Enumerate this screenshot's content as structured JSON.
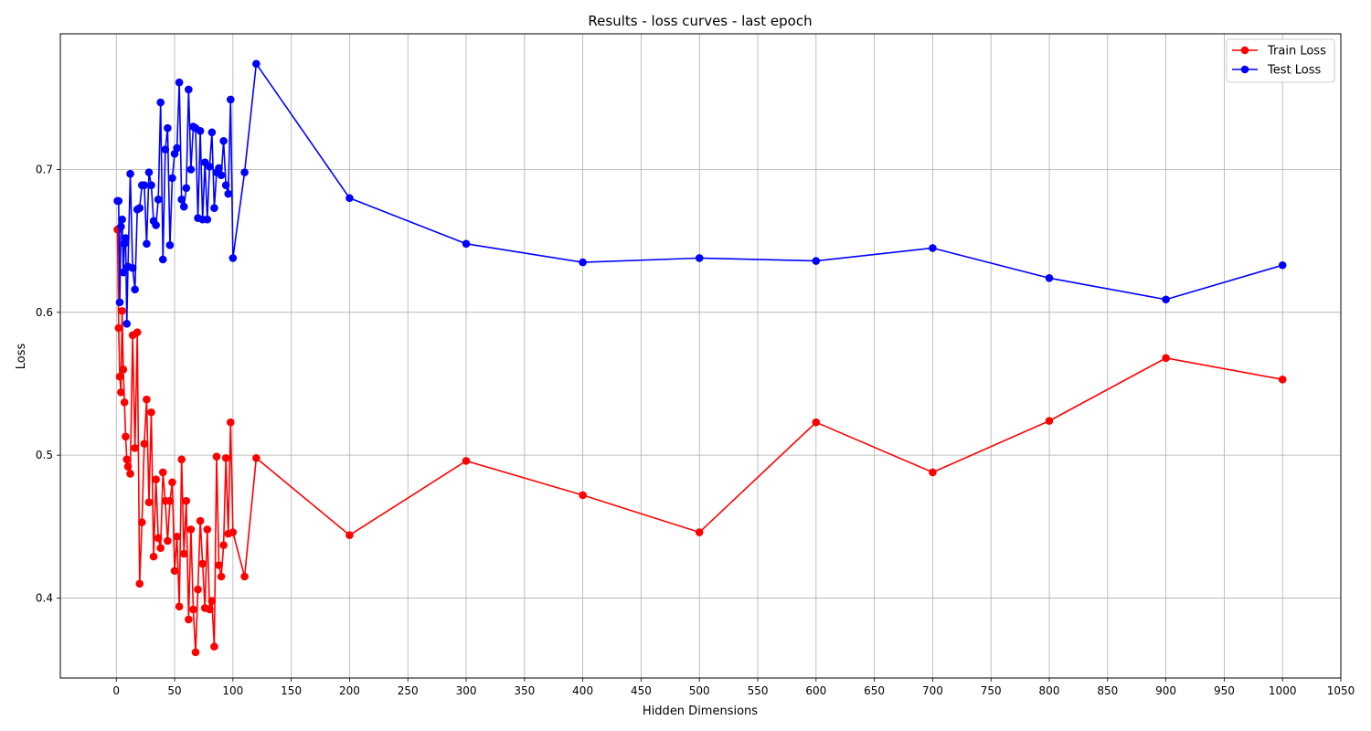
{
  "chart_data": {
    "type": "line",
    "title": "Results - loss curves - last epoch",
    "xlabel": "Hidden Dimensions",
    "ylabel": "Loss",
    "xlim": [
      -48,
      1050
    ],
    "ylim": [
      0.344,
      0.795
    ],
    "xticks": [
      0,
      50,
      100,
      150,
      200,
      250,
      300,
      350,
      400,
      450,
      500,
      550,
      600,
      650,
      700,
      750,
      800,
      850,
      900,
      950,
      1000,
      1050
    ],
    "yticks": [
      0.4,
      0.5,
      0.6,
      0.7
    ],
    "ytick_labels": [
      "0.4",
      "0.5",
      "0.6",
      "0.7"
    ],
    "grid": true,
    "legend_position": "top-right",
    "x": [
      1,
      2,
      3,
      4,
      5,
      6,
      7,
      8,
      9,
      10,
      12,
      14,
      16,
      18,
      20,
      22,
      24,
      26,
      28,
      30,
      32,
      34,
      36,
      38,
      40,
      42,
      44,
      46,
      48,
      50,
      52,
      54,
      56,
      58,
      60,
      62,
      64,
      66,
      68,
      70,
      72,
      74,
      76,
      78,
      80,
      82,
      84,
      86,
      88,
      90,
      92,
      94,
      96,
      98,
      100,
      110,
      120,
      200,
      300,
      400,
      500,
      600,
      700,
      800,
      900,
      1000
    ],
    "series": [
      {
        "name": "Train Loss",
        "color": "#ff0000",
        "values": [
          0.658,
          0.589,
          0.555,
          0.544,
          0.601,
          0.56,
          0.537,
          0.513,
          0.497,
          0.492,
          0.487,
          0.584,
          0.505,
          0.586,
          0.41,
          0.453,
          0.508,
          0.539,
          0.467,
          0.53,
          0.429,
          0.483,
          0.442,
          0.435,
          0.488,
          0.468,
          0.44,
          0.468,
          0.481,
          0.419,
          0.443,
          0.394,
          0.497,
          0.431,
          0.468,
          0.385,
          0.448,
          0.392,
          0.362,
          0.406,
          0.454,
          0.424,
          0.393,
          0.448,
          0.392,
          0.398,
          0.366,
          0.499,
          0.423,
          0.415,
          0.437,
          0.498,
          0.445,
          0.523,
          0.446,
          0.415,
          0.498,
          0.444,
          0.496,
          0.472,
          0.446,
          0.523,
          0.488,
          0.524,
          0.568,
          0.553
        ]
      },
      {
        "name": "Test Loss",
        "color": "#0000ff",
        "values": [
          0.678,
          0.678,
          0.607,
          0.66,
          0.665,
          0.628,
          0.648,
          0.652,
          0.592,
          0.632,
          0.697,
          0.631,
          0.616,
          0.672,
          0.673,
          0.689,
          0.689,
          0.648,
          0.698,
          0.689,
          0.664,
          0.661,
          0.679,
          0.747,
          0.637,
          0.714,
          0.729,
          0.647,
          0.694,
          0.711,
          0.715,
          0.761,
          0.679,
          0.674,
          0.687,
          0.756,
          0.7,
          0.73,
          0.729,
          0.666,
          0.727,
          0.665,
          0.705,
          0.665,
          0.702,
          0.726,
          0.673,
          0.698,
          0.701,
          0.696,
          0.72,
          0.689,
          0.683,
          0.749,
          0.638,
          0.698,
          0.774,
          0.68,
          0.648,
          0.635,
          0.638,
          0.636,
          0.645,
          0.624,
          0.609,
          0.633
        ]
      }
    ]
  }
}
